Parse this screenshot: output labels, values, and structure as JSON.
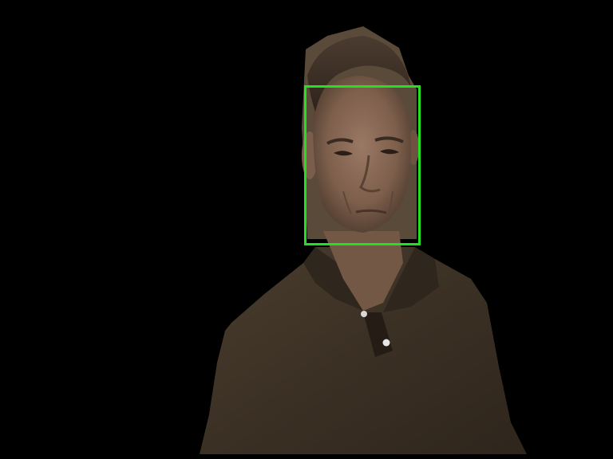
{
  "scene": {
    "description_free": true,
    "background_color": "#000000",
    "subject": "person-cutout",
    "shirt_color": "#3a2f22",
    "skin_color": "#8a6a55",
    "hair_color": "#3a2c22"
  },
  "detection": {
    "box_color": "#22e022",
    "target": "face-detection-box"
  }
}
